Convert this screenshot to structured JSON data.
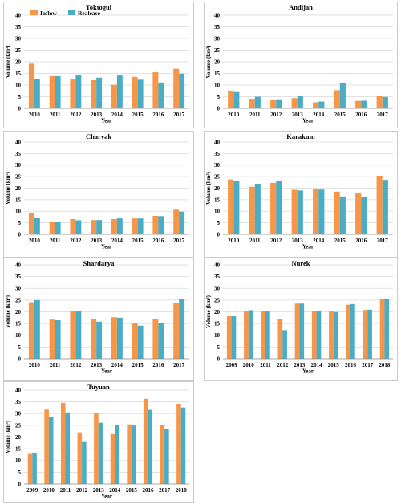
{
  "colors": {
    "inflow": "#F79646",
    "release": "#4BACC6",
    "grid": "#d9d9d9",
    "frame": "#bfbfbf",
    "axis": "#868686"
  },
  "legend": {
    "inflow": "Inflow",
    "release": "Realease",
    "placement": "top-left (Toktogul panel)"
  },
  "chart_data": [
    {
      "type": "bar",
      "title": "Toktogul",
      "xlabel": "Year",
      "ylabel": "Volume (km³)",
      "ylim": [
        0,
        40
      ],
      "yticks": [
        "0",
        "5",
        "10",
        "15",
        "20",
        "25",
        "30",
        "35",
        "40"
      ],
      "grid": true,
      "categories": [
        "2010",
        "2011",
        "2012",
        "2013",
        "2014",
        "2015",
        "2016",
        "2017"
      ],
      "series": [
        {
          "name": "Inflow",
          "values": [
            19.2,
            13.8,
            12.4,
            12.1,
            10.1,
            13.5,
            15.5,
            17.0
          ]
        },
        {
          "name": "Realease",
          "values": [
            12.6,
            13.8,
            14.4,
            13.2,
            14.1,
            12.3,
            11.1,
            14.9
          ]
        }
      ]
    },
    {
      "type": "bar",
      "title": "Andijan",
      "xlabel": "Year",
      "ylabel": "Volume (km³)",
      "ylim": [
        0,
        40
      ],
      "yticks": [
        "0",
        "5",
        "10",
        "15",
        "20",
        "25",
        "30",
        "35",
        "40"
      ],
      "grid": true,
      "categories": [
        "2010",
        "2011",
        "2012",
        "2013",
        "2014",
        "2015",
        "2016",
        "2017"
      ],
      "series": [
        {
          "name": "Inflow",
          "values": [
            7.4,
            4.1,
            3.8,
            4.4,
            2.6,
            7.8,
            3.2,
            5.3
          ]
        },
        {
          "name": "Realease",
          "values": [
            7.0,
            5.0,
            3.9,
            5.3,
            2.9,
            10.7,
            3.3,
            4.9
          ]
        }
      ]
    },
    {
      "type": "bar",
      "title": "Charvak",
      "xlabel": "Year",
      "ylabel": "Volume (km³)",
      "ylim": [
        0,
        40
      ],
      "yticks": [
        "0",
        "5",
        "10",
        "15",
        "20",
        "25",
        "30",
        "35",
        "40"
      ],
      "grid": true,
      "categories": [
        "2010",
        "2011",
        "2012",
        "2013",
        "2014",
        "2015",
        "2016",
        "2017"
      ],
      "series": [
        {
          "name": "Inflow",
          "values": [
            9.2,
            5.3,
            6.6,
            6.2,
            6.6,
            6.9,
            8.0,
            10.7
          ]
        },
        {
          "name": "Realease",
          "values": [
            7.0,
            5.4,
            6.1,
            6.2,
            6.9,
            6.9,
            7.9,
            9.8
          ]
        }
      ]
    },
    {
      "type": "bar",
      "title": "Karakum",
      "xlabel": "Year",
      "ylabel": "Volume (km³)",
      "ylim": [
        0,
        40
      ],
      "yticks": [
        "0",
        "5",
        "10",
        "15",
        "20",
        "25",
        "30",
        "35",
        "40"
      ],
      "grid": true,
      "categories": [
        "2010",
        "2011",
        "2012",
        "2013",
        "2014",
        "2015",
        "2016",
        "2017"
      ],
      "series": [
        {
          "name": "Inflow",
          "values": [
            23.8,
            20.6,
            22.3,
            19.3,
            19.6,
            18.5,
            18.1,
            25.4
          ]
        },
        {
          "name": "Realease",
          "values": [
            23.2,
            21.9,
            23.0,
            19.0,
            19.4,
            16.4,
            16.2,
            23.6
          ]
        }
      ]
    },
    {
      "type": "bar",
      "title": "Shardarya",
      "xlabel": "Year",
      "ylabel": "Volume (km³)",
      "ylim": [
        0,
        40
      ],
      "yticks": [
        "0",
        "5",
        "10",
        "15",
        "20",
        "25",
        "30",
        "35",
        "40"
      ],
      "grid": true,
      "categories": [
        "2010",
        "2011",
        "2012",
        "2013",
        "2014",
        "2015",
        "2016",
        "2017"
      ],
      "series": [
        {
          "name": "Inflow",
          "values": [
            24.1,
            16.7,
            20.4,
            17.0,
            17.7,
            15.1,
            17.1,
            23.6
          ]
        },
        {
          "name": "Realease",
          "values": [
            25.0,
            16.4,
            20.3,
            15.8,
            17.5,
            14.1,
            15.3,
            25.3
          ]
        }
      ]
    },
    {
      "type": "bar",
      "title": "Nurek",
      "xlabel": "Year",
      "ylabel": "Volume (km³)",
      "ylim": [
        0,
        40
      ],
      "yticks": [
        "0",
        "5",
        "10",
        "15",
        "20",
        "25",
        "30",
        "35",
        "40"
      ],
      "grid": true,
      "categories": [
        "2009",
        "2010",
        "2011",
        "2012",
        "2013",
        "2014",
        "2015",
        "2016",
        "2017",
        "2018"
      ],
      "series": [
        {
          "name": "Inflow",
          "values": [
            18.1,
            20.3,
            20.4,
            16.9,
            23.5,
            20.2,
            20.3,
            23.0,
            20.8,
            25.3
          ]
        },
        {
          "name": "Realease",
          "values": [
            18.1,
            20.7,
            20.5,
            12.2,
            23.5,
            20.3,
            19.9,
            23.3,
            20.9,
            25.5
          ]
        }
      ]
    },
    {
      "type": "bar",
      "title": "Tuyuan",
      "xlabel": "Year",
      "ylabel": "Volume (km³)",
      "ylim": [
        0,
        40
      ],
      "yticks": [
        "0",
        "5",
        "10",
        "15",
        "20",
        "25",
        "30",
        "35",
        "40"
      ],
      "grid": true,
      "categories": [
        "2009",
        "2010",
        "2011",
        "2012",
        "2013",
        "2014",
        "2015",
        "2016",
        "2017",
        "2018"
      ],
      "series": [
        {
          "name": "Inflow",
          "values": [
            12.8,
            31.7,
            34.6,
            22.0,
            30.3,
            21.3,
            25.4,
            36.3,
            25.0,
            34.2
          ]
        },
        {
          "name": "Realease",
          "values": [
            13.3,
            28.6,
            30.5,
            17.9,
            26.1,
            25.1,
            24.9,
            31.6,
            23.3,
            32.6
          ]
        }
      ]
    }
  ]
}
